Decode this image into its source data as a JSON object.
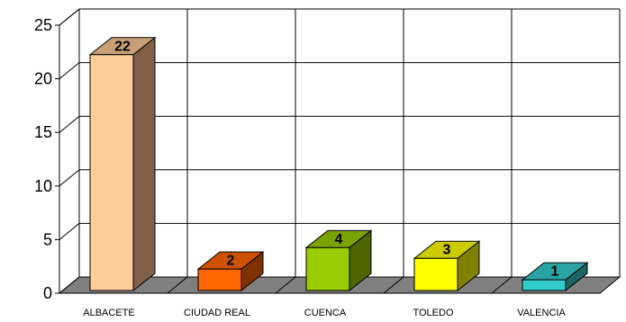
{
  "chart_data": {
    "type": "bar",
    "title": "",
    "xlabel": "",
    "ylabel": "",
    "categories": [
      "ALBACETE",
      "CIUDAD REAL",
      "CUENCA",
      "TOLEDO",
      "VALENCIA"
    ],
    "values": [
      22,
      2,
      4,
      3,
      1
    ],
    "data_labels": [
      "22",
      "2",
      "4",
      "3",
      "1"
    ],
    "ylim": [
      0,
      25
    ],
    "yticks": [
      "0",
      "5",
      "10",
      "15",
      "20",
      "25"
    ],
    "grid": true,
    "legend": "none",
    "style": "3d",
    "colors": {
      "ALBACETE": {
        "front": "#FFCC99",
        "top": "#C8A078",
        "side": "#806048"
      },
      "CIUDAD REAL": {
        "front": "#FF6600",
        "top": "#CC5200",
        "side": "#803300"
      },
      "CUENCA": {
        "front": "#99CC00",
        "top": "#7AA300",
        "side": "#4D6600"
      },
      "TOLEDO": {
        "front": "#FFFF00",
        "top": "#CCCC00",
        "side": "#808000"
      },
      "VALENCIA": {
        "front": "#33CCCC",
        "top": "#29A3A3",
        "side": "#1A6666"
      },
      "floor": "#808080",
      "grid": "#000000"
    }
  }
}
